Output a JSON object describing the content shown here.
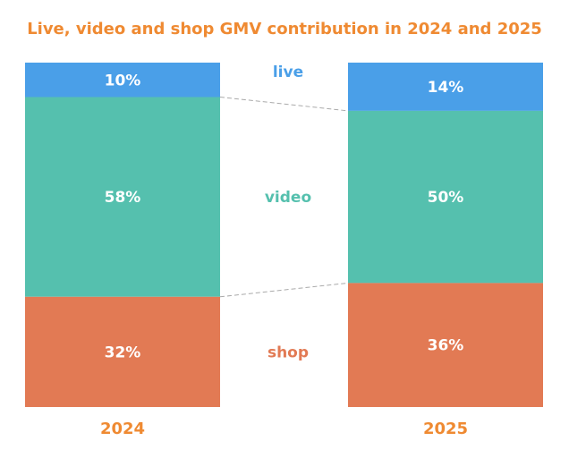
{
  "chart_data": {
    "type": "bar",
    "stacked": true,
    "normalized_percent": true,
    "title": "Live, video and shop GMV contribution in 2024 and 2025",
    "categories": [
      "2024",
      "2025"
    ],
    "series": [
      {
        "name": "live",
        "values": [
          10,
          14
        ],
        "labels": [
          "10%",
          "14%"
        ],
        "color": "#4a9fe8"
      },
      {
        "name": "video",
        "values": [
          58,
          50
        ],
        "labels": [
          "58%",
          "50%"
        ],
        "color": "#55c0ae"
      },
      {
        "name": "shop",
        "values": [
          32,
          36
        ],
        "labels": [
          "32%",
          "36%"
        ],
        "color": "#e27a54"
      }
    ],
    "connector_lines": true,
    "ylim": [
      0,
      100
    ],
    "grid": false,
    "legend": "between-bars",
    "colors": {
      "title": "#ef8a32",
      "year_labels": "#ef8a32",
      "connector": "#aaaaaa"
    }
  }
}
